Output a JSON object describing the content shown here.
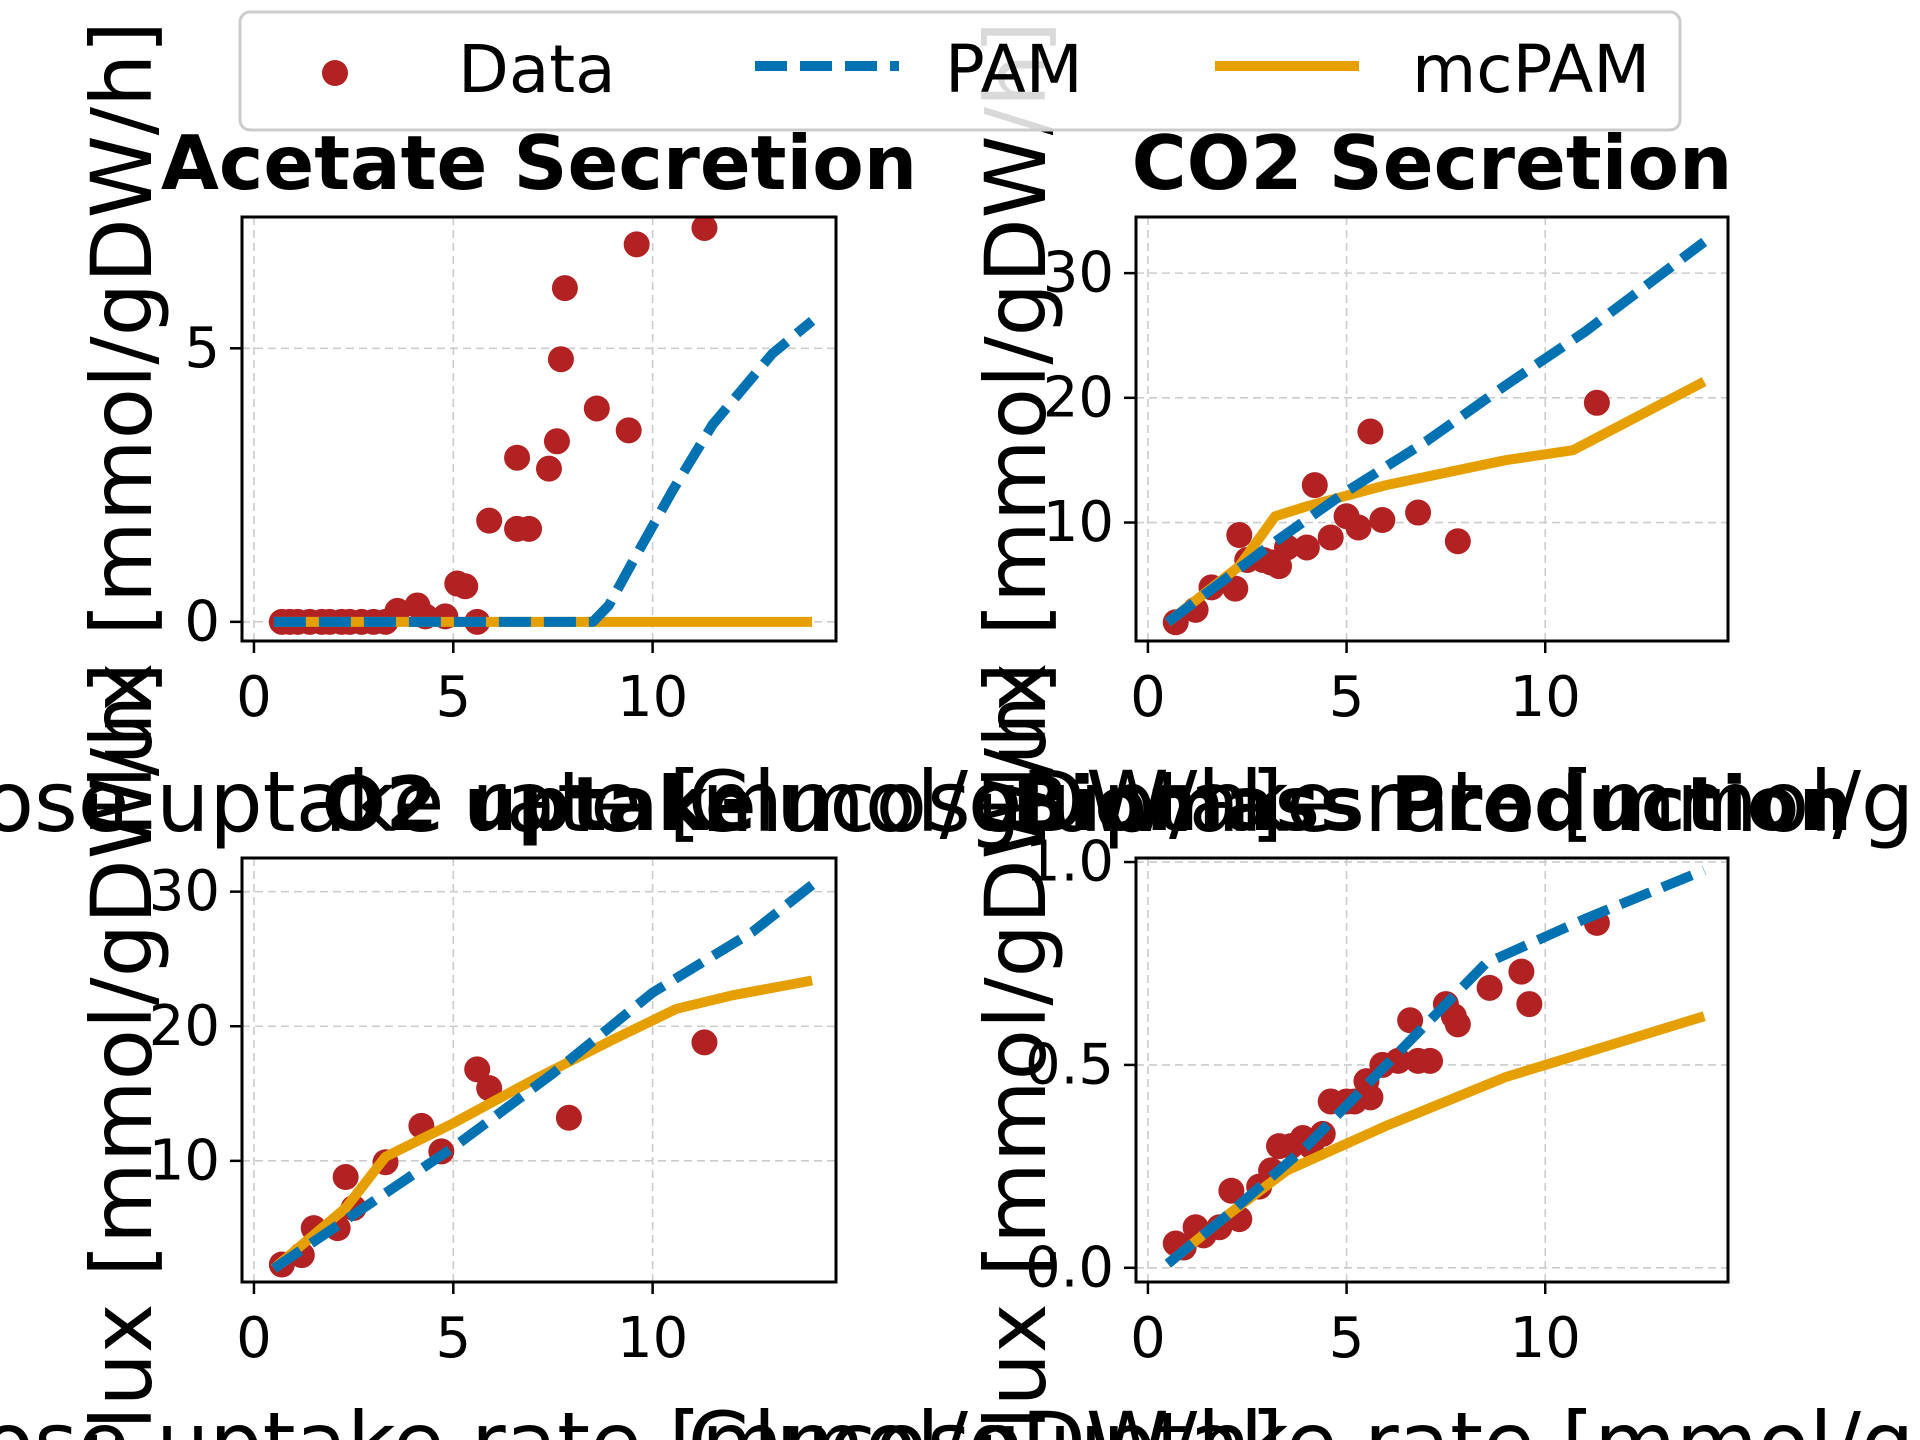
{
  "legend": {
    "placement": "top-center",
    "entries": [
      {
        "label": "Data",
        "kind": "marker",
        "color": "#b22222"
      },
      {
        "label": "PAM",
        "kind": "dashed-line",
        "color": "#0072b2"
      },
      {
        "label": "mcPAM",
        "kind": "solid-line",
        "color": "#e69f00"
      }
    ]
  },
  "chart_data": [
    {
      "type": "scatter+line",
      "title": "Acetate Secretion",
      "xlabel": "Glucose uptake rate [mmol/gDW/h]",
      "ylabel": "Flux [mmol/gDW/h]",
      "xlim": [
        -0.3,
        14.6
      ],
      "ylim": [
        -0.35,
        7.4
      ],
      "xticks": [
        0,
        5,
        10
      ],
      "yticks": [
        0,
        5
      ],
      "grid": true,
      "series": [
        {
          "name": "Data",
          "kind": "scatter",
          "color": "#b22222",
          "points": [
            [
              0.7,
              0
            ],
            [
              0.9,
              0
            ],
            [
              1.1,
              0
            ],
            [
              1.4,
              0
            ],
            [
              1.7,
              0
            ],
            [
              1.9,
              0
            ],
            [
              2.2,
              0
            ],
            [
              2.4,
              0
            ],
            [
              2.7,
              0
            ],
            [
              3.0,
              0
            ],
            [
              3.3,
              0
            ],
            [
              3.6,
              0.2
            ],
            [
              4.1,
              0.3
            ],
            [
              4.3,
              0.1
            ],
            [
              4.8,
              0.1
            ],
            [
              5.1,
              0.7
            ],
            [
              5.3,
              0.65
            ],
            [
              5.6,
              0
            ],
            [
              5.9,
              1.85
            ],
            [
              6.6,
              1.7
            ],
            [
              6.9,
              1.7
            ],
            [
              6.6,
              3.0
            ],
            [
              7.4,
              2.8
            ],
            [
              7.6,
              3.3
            ],
            [
              7.7,
              4.8
            ],
            [
              7.8,
              6.1
            ],
            [
              8.6,
              3.9
            ],
            [
              9.4,
              3.5
            ],
            [
              9.6,
              6.9
            ],
            [
              11.3,
              7.2
            ]
          ]
        },
        {
          "name": "PAM",
          "kind": "line",
          "dash": true,
          "color": "#0072b2",
          "points": [
            [
              0.5,
              0
            ],
            [
              8.5,
              0
            ],
            [
              8.9,
              0.3
            ],
            [
              9.5,
              1.1
            ],
            [
              10.5,
              2.4
            ],
            [
              11.5,
              3.6
            ],
            [
              13.0,
              4.9
            ],
            [
              14.0,
              5.5
            ]
          ]
        },
        {
          "name": "mcPAM",
          "kind": "line",
          "dash": false,
          "color": "#e69f00",
          "points": [
            [
              0.5,
              0
            ],
            [
              14.0,
              0
            ]
          ]
        }
      ]
    },
    {
      "type": "scatter+line",
      "title": "CO2 Secretion",
      "xlabel": "Glucose uptake rate [mmol/gDW/h]",
      "ylabel": "Flux [mmol/gDW/h]",
      "xlim": [
        -0.3,
        14.6
      ],
      "ylim": [
        0.5,
        34.5
      ],
      "xticks": [
        0,
        5,
        10
      ],
      "yticks": [
        10,
        20,
        30
      ],
      "grid": true,
      "series": [
        {
          "name": "Data",
          "kind": "scatter",
          "color": "#b22222",
          "points": [
            [
              0.7,
              2.0
            ],
            [
              1.2,
              3.0
            ],
            [
              1.6,
              4.8
            ],
            [
              2.2,
              4.7
            ],
            [
              2.3,
              9.0
            ],
            [
              2.5,
              7.0
            ],
            [
              2.9,
              7.0
            ],
            [
              3.1,
              6.8
            ],
            [
              3.3,
              6.5
            ],
            [
              3.5,
              8.0
            ],
            [
              4.0,
              8.0
            ],
            [
              4.2,
              13.0
            ],
            [
              4.6,
              8.8
            ],
            [
              5.0,
              10.5
            ],
            [
              5.3,
              9.6
            ],
            [
              5.6,
              17.3
            ],
            [
              5.9,
              10.2
            ],
            [
              6.8,
              10.8
            ],
            [
              7.8,
              8.5
            ],
            [
              11.3,
              19.6
            ]
          ]
        },
        {
          "name": "PAM",
          "kind": "line",
          "dash": true,
          "color": "#0072b2",
          "points": [
            [
              0.5,
              2.0
            ],
            [
              3.0,
              8.0
            ],
            [
              5.0,
              12.5
            ],
            [
              7.0,
              16.5
            ],
            [
              9.0,
              21.0
            ],
            [
              11.0,
              25.3
            ],
            [
              14.0,
              32.5
            ]
          ]
        },
        {
          "name": "mcPAM",
          "kind": "line",
          "dash": false,
          "color": "#e69f00",
          "points": [
            [
              0.5,
              2.0
            ],
            [
              2.3,
              6.5
            ],
            [
              3.2,
              10.5
            ],
            [
              4.0,
              11.3
            ],
            [
              6.0,
              13.0
            ],
            [
              9.0,
              15.0
            ],
            [
              10.7,
              15.8
            ],
            [
              11.3,
              16.8
            ],
            [
              14.0,
              21.3
            ]
          ]
        }
      ]
    },
    {
      "type": "scatter+line",
      "title": "O2 uptake",
      "xlabel": "Glucose uptake rate [mmol/gDW/h]",
      "ylabel": "Flux [mmol/gDW/h]",
      "xlim": [
        -0.3,
        14.6
      ],
      "ylim": [
        1.0,
        32.5
      ],
      "xticks": [
        0,
        5,
        10
      ],
      "yticks": [
        10,
        20,
        30
      ],
      "grid": true,
      "series": [
        {
          "name": "Data",
          "kind": "scatter",
          "color": "#b22222",
          "points": [
            [
              0.7,
              2.3
            ],
            [
              1.2,
              3.0
            ],
            [
              1.5,
              5.0
            ],
            [
              2.1,
              5.0
            ],
            [
              2.3,
              8.8
            ],
            [
              2.5,
              6.5
            ],
            [
              3.3,
              9.9
            ],
            [
              4.2,
              12.6
            ],
            [
              4.7,
              10.7
            ],
            [
              5.6,
              16.8
            ],
            [
              5.9,
              15.4
            ],
            [
              7.9,
              13.2
            ],
            [
              11.3,
              18.8
            ]
          ]
        },
        {
          "name": "PAM",
          "kind": "line",
          "dash": true,
          "color": "#0072b2",
          "points": [
            [
              0.5,
              2.0
            ],
            [
              2.5,
              6.0
            ],
            [
              5.0,
              11.0
            ],
            [
              7.5,
              16.5
            ],
            [
              10.0,
              22.5
            ],
            [
              12.5,
              27.0
            ],
            [
              14.0,
              30.5
            ]
          ]
        },
        {
          "name": "mcPAM",
          "kind": "line",
          "dash": false,
          "color": "#e69f00",
          "points": [
            [
              0.5,
              2.0
            ],
            [
              2.3,
              6.5
            ],
            [
              3.3,
              10.3
            ],
            [
              5.0,
              12.8
            ],
            [
              7.0,
              16.0
            ],
            [
              9.0,
              19.0
            ],
            [
              10.6,
              21.3
            ],
            [
              12.0,
              22.3
            ],
            [
              14.0,
              23.4
            ]
          ]
        }
      ]
    },
    {
      "type": "scatter+line",
      "title": "Biomass Production",
      "xlabel": "Glucose uptake rate [mmol/gDW/h]",
      "ylabel": "Flux [mmol/gDW/h]",
      "xlim": [
        -0.3,
        14.6
      ],
      "ylim": [
        -0.035,
        1.01
      ],
      "xticks": [
        0,
        5,
        10
      ],
      "yticks": [
        0.0,
        0.5,
        1.0
      ],
      "grid": true,
      "series": [
        {
          "name": "Data",
          "kind": "scatter",
          "color": "#b22222",
          "points": [
            [
              0.7,
              0.06
            ],
            [
              0.9,
              0.05
            ],
            [
              1.2,
              0.1
            ],
            [
              1.4,
              0.08
            ],
            [
              1.8,
              0.1
            ],
            [
              2.1,
              0.19
            ],
            [
              2.3,
              0.12
            ],
            [
              2.8,
              0.2
            ],
            [
              3.1,
              0.24
            ],
            [
              3.3,
              0.3
            ],
            [
              3.6,
              0.3
            ],
            [
              3.9,
              0.32
            ],
            [
              4.1,
              0.3
            ],
            [
              4.4,
              0.33
            ],
            [
              4.6,
              0.41
            ],
            [
              5.0,
              0.41
            ],
            [
              5.2,
              0.41
            ],
            [
              5.5,
              0.46
            ],
            [
              5.6,
              0.42
            ],
            [
              5.9,
              0.5
            ],
            [
              6.3,
              0.51
            ],
            [
              6.6,
              0.61
            ],
            [
              6.8,
              0.51
            ],
            [
              7.1,
              0.51
            ],
            [
              7.5,
              0.65
            ],
            [
              7.7,
              0.62
            ],
            [
              7.8,
              0.6
            ],
            [
              8.6,
              0.69
            ],
            [
              9.4,
              0.73
            ],
            [
              9.6,
              0.65
            ],
            [
              11.3,
              0.85
            ]
          ]
        },
        {
          "name": "PAM",
          "kind": "line",
          "dash": true,
          "color": "#0072b2",
          "points": [
            [
              0.5,
              0.01
            ],
            [
              2.0,
              0.13
            ],
            [
              4.0,
              0.3
            ],
            [
              6.0,
              0.5
            ],
            [
              8.5,
              0.75
            ],
            [
              11.0,
              0.86
            ],
            [
              14.0,
              0.98
            ]
          ]
        },
        {
          "name": "mcPAM",
          "kind": "line",
          "dash": false,
          "color": "#e69f00",
          "points": [
            [
              0.5,
              0.01
            ],
            [
              2.0,
              0.13
            ],
            [
              3.5,
              0.24
            ],
            [
              6.0,
              0.35
            ],
            [
              9.0,
              0.47
            ],
            [
              11.0,
              0.53
            ],
            [
              14.0,
              0.62
            ]
          ]
        }
      ]
    }
  ]
}
